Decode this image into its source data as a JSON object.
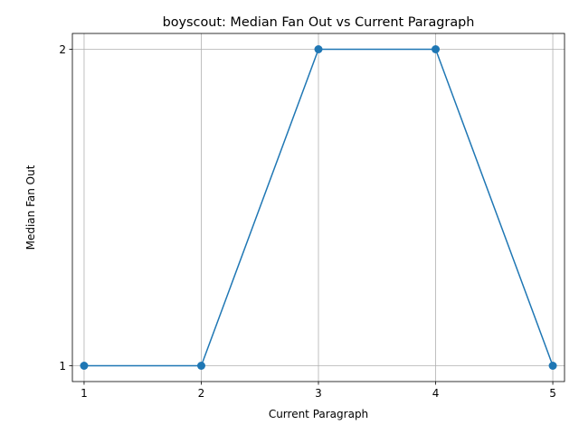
{
  "chart_data": {
    "type": "line",
    "title": "boyscout: Median Fan Out vs Current Paragraph",
    "xlabel": "Current Paragraph",
    "ylabel": "Median Fan Out",
    "x": [
      1,
      2,
      3,
      4,
      5
    ],
    "series": [
      {
        "values": [
          1,
          1,
          2,
          2,
          1
        ],
        "color": "#1f77b4",
        "marker": "circle"
      }
    ],
    "xticks": [
      "1",
      "2",
      "3",
      "4",
      "5"
    ],
    "yticks": [
      "1",
      "2"
    ],
    "xlim": [
      0.9,
      5.1
    ],
    "ylim": [
      0.95,
      2.05
    ],
    "grid": true
  }
}
